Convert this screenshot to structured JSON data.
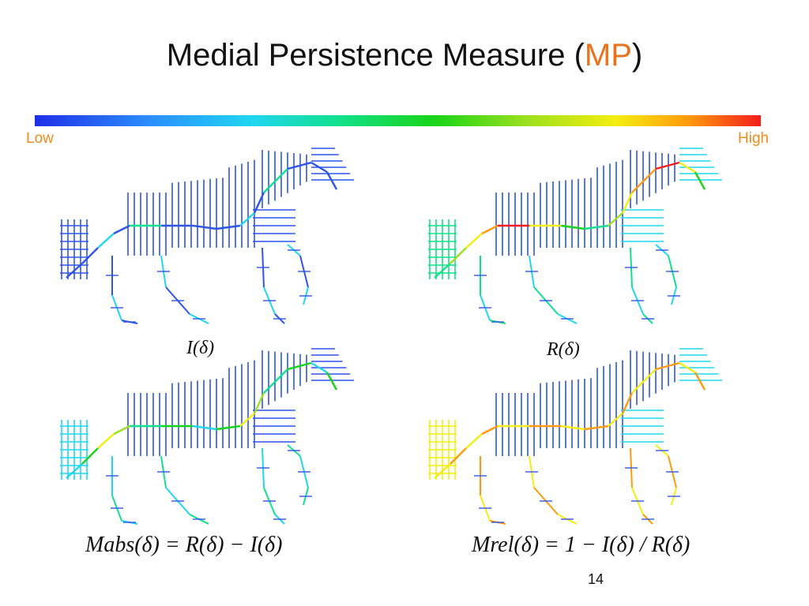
{
  "slide": {
    "title_main": "Medial Persistence Measure (",
    "title_accent": "MP",
    "title_end": ")",
    "page_number": "14"
  },
  "colorbar": {
    "low_label": "Low",
    "high_label": "High",
    "colors": [
      "#1f2ee6",
      "#2b8fff",
      "#20d6f0",
      "#12e08a",
      "#18d418",
      "#9fe01e",
      "#f3ee10",
      "#ff9a0c",
      "#f21d1d"
    ]
  },
  "panels": [
    {
      "caption": "I(δ)",
      "style": "low"
    },
    {
      "caption": "R(δ)",
      "style": "ridge"
    },
    {
      "caption": "Mabs(δ) = R(δ) − I(δ)",
      "style": "mid"
    },
    {
      "caption": "Mrel(δ) = 1 − I(δ) / R(δ)",
      "style": "rel"
    }
  ],
  "equations": {
    "eq1": "I(δ)",
    "eq2": "R(δ)",
    "eq3": "Mabs(δ) = R(δ) − I(δ)",
    "eq4": "Mrel(δ) = 1 − I(δ) / R(δ)"
  }
}
